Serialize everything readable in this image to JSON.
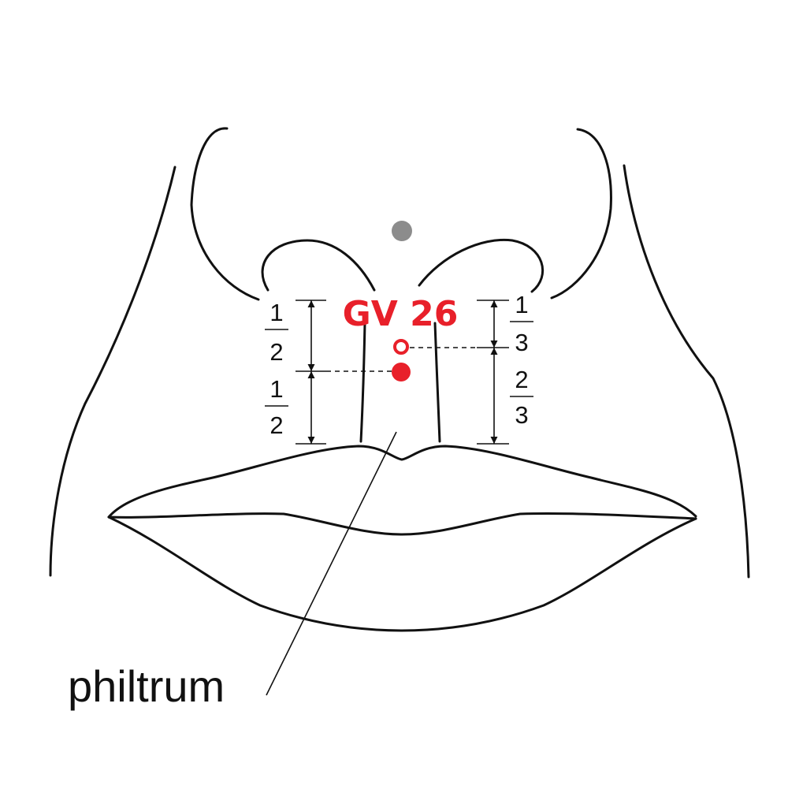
{
  "point": {
    "label": "GV 26",
    "color": "#e8202a"
  },
  "landmark_dot_color": "#8c8c8c",
  "left_ratio": {
    "upper": {
      "numerator": "1",
      "denominator": "2"
    },
    "lower": {
      "numerator": "1",
      "denominator": "2"
    }
  },
  "right_ratio": {
    "upper": {
      "numerator": "1",
      "denominator": "3"
    },
    "lower": {
      "numerator": "2",
      "denominator": "3"
    }
  },
  "caption": "philtrum"
}
